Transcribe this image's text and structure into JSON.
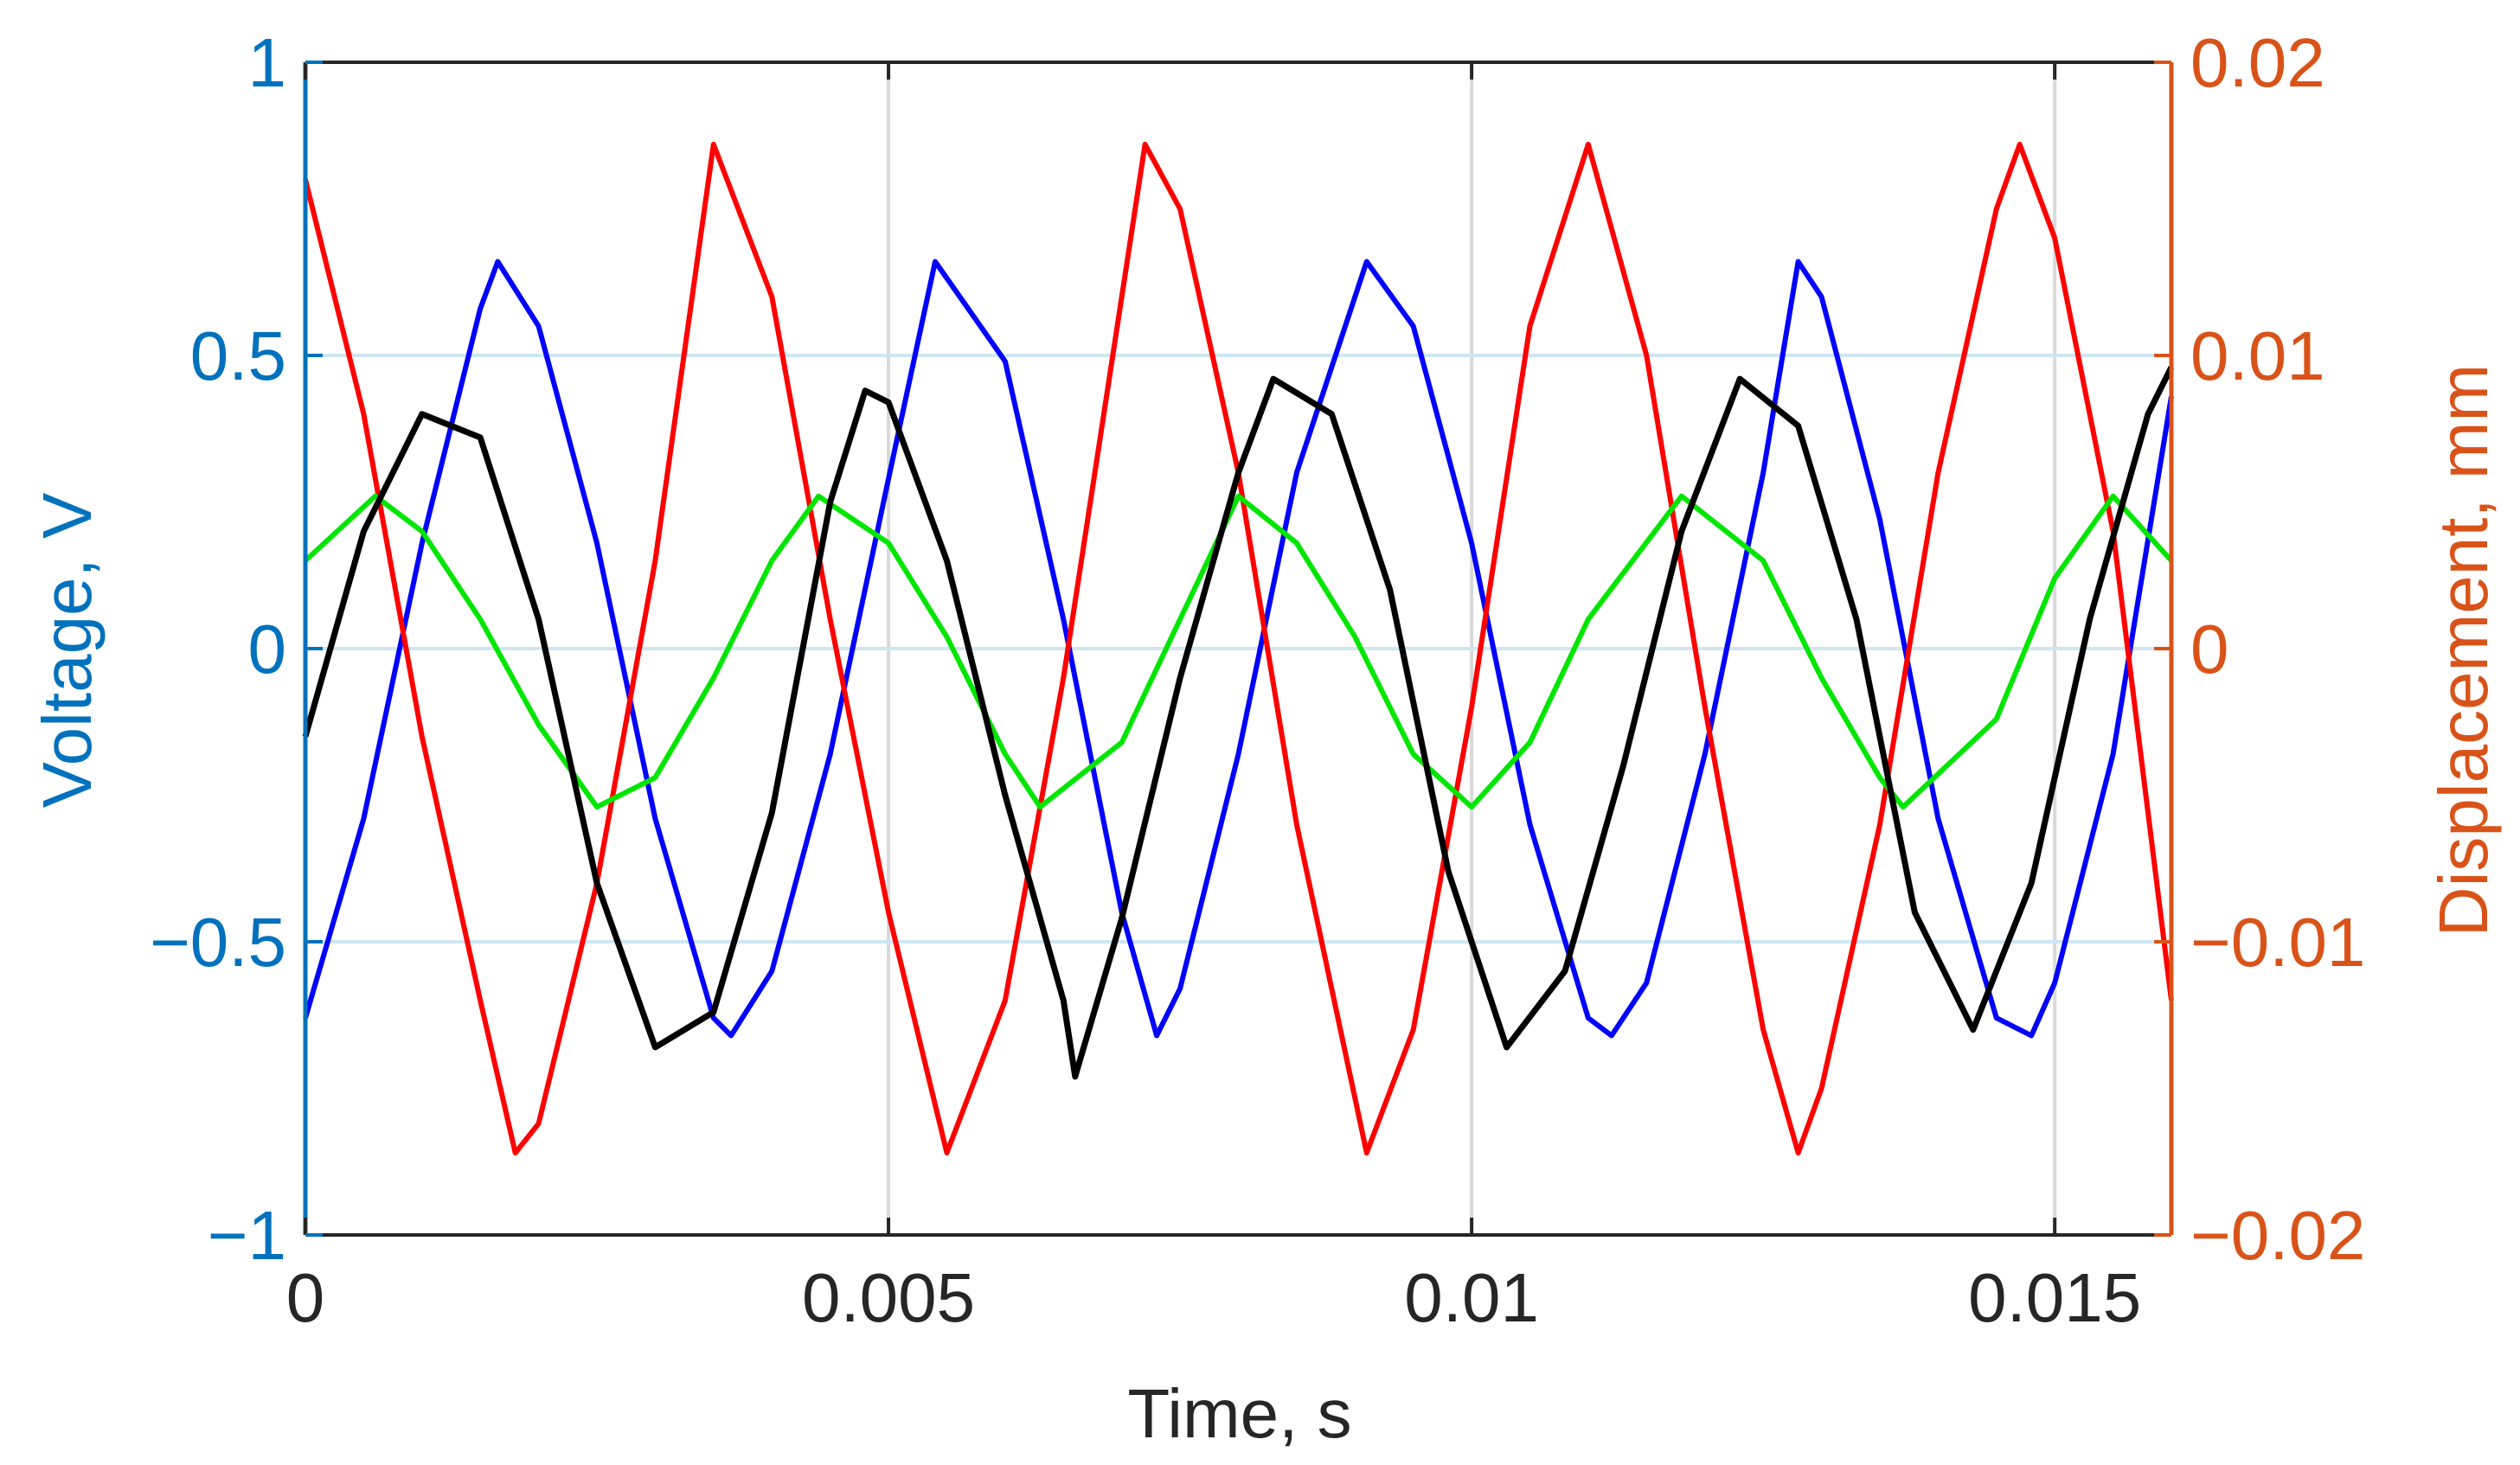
{
  "chart_data": {
    "type": "line",
    "title": "",
    "xlabel": "Time, s",
    "ylabel_left": "Voltage, V",
    "ylabel_right": "Displacement,  mm",
    "xlim": [
      0,
      0.016
    ],
    "ylim_left": [
      -1,
      1
    ],
    "ylim_right": [
      -0.02,
      0.02
    ],
    "grid": true,
    "x_ticks": [
      0,
      0.005,
      0.01,
      0.015
    ],
    "x_tick_labels": [
      "0",
      "0.005",
      "0.01",
      "0.015"
    ],
    "y_left_ticks": [
      -1,
      -0.5,
      0,
      0.5,
      1
    ],
    "y_left_tick_labels": [
      "−1",
      "−0.5",
      "0",
      "0.5",
      "1"
    ],
    "y_right_ticks": [
      -0.02,
      -0.01,
      0,
      0.01,
      0.02
    ],
    "y_right_tick_labels": [
      "−0.02",
      "−0.01",
      "0",
      "0.01",
      "0.02"
    ],
    "colors": {
      "left_axis": "#0072BD",
      "right_axis": "#D95319",
      "grid_left": "#CFE6F5",
      "grid_x": "#D9D9D9",
      "box": "#262626"
    },
    "series": [
      {
        "axis": "left",
        "color": "#0000FF",
        "points": [
          [
            0,
            -0.63
          ],
          [
            0.0005,
            -0.29
          ],
          [
            0.001,
            0.18
          ],
          [
            0.0015,
            0.58
          ],
          [
            0.00165,
            0.66
          ],
          [
            0.002,
            0.55
          ],
          [
            0.0025,
            0.18
          ],
          [
            0.003,
            -0.29
          ],
          [
            0.0035,
            -0.63
          ],
          [
            0.00365,
            -0.66
          ],
          [
            0.004,
            -0.55
          ],
          [
            0.0045,
            -0.18
          ],
          [
            0.005,
            0.29
          ],
          [
            0.0054,
            0.66
          ],
          [
            0.006,
            0.49
          ],
          [
            0.0065,
            0.05
          ],
          [
            0.007,
            -0.45
          ],
          [
            0.0073,
            -0.66
          ],
          [
            0.0075,
            -0.58
          ],
          [
            0.008,
            -0.18
          ],
          [
            0.0085,
            0.3
          ],
          [
            0.0091,
            0.66
          ],
          [
            0.0095,
            0.55
          ],
          [
            0.01,
            0.18
          ],
          [
            0.0105,
            -0.3
          ],
          [
            0.011,
            -0.63
          ],
          [
            0.0112,
            -0.66
          ],
          [
            0.0115,
            -0.57
          ],
          [
            0.012,
            -0.18
          ],
          [
            0.0125,
            0.3
          ],
          [
            0.0128,
            0.66
          ],
          [
            0.013,
            0.6
          ],
          [
            0.0135,
            0.22
          ],
          [
            0.014,
            -0.29
          ],
          [
            0.0145,
            -0.63
          ],
          [
            0.0148,
            -0.66
          ],
          [
            0.015,
            -0.57
          ],
          [
            0.0155,
            -0.18
          ],
          [
            0.016,
            0.43
          ]
        ]
      },
      {
        "axis": "right",
        "color": "#FF0000",
        "points": [
          [
            0,
            0.016
          ],
          [
            0.0005,
            0.008
          ],
          [
            0.001,
            -0.003
          ],
          [
            0.0015,
            -0.012
          ],
          [
            0.0018,
            -0.0172
          ],
          [
            0.002,
            -0.0162
          ],
          [
            0.0025,
            -0.008
          ],
          [
            0.003,
            0.003
          ],
          [
            0.0035,
            0.0172
          ],
          [
            0.004,
            0.012
          ],
          [
            0.0045,
            0.001
          ],
          [
            0.005,
            -0.009
          ],
          [
            0.0055,
            -0.0172
          ],
          [
            0.006,
            -0.012
          ],
          [
            0.0065,
            -0.001
          ],
          [
            0.007,
            0.012
          ],
          [
            0.0072,
            0.0172
          ],
          [
            0.0075,
            0.015
          ],
          [
            0.008,
            0.006
          ],
          [
            0.0085,
            -0.006
          ],
          [
            0.0091,
            -0.0172
          ],
          [
            0.0095,
            -0.013
          ],
          [
            0.01,
            -0.002
          ],
          [
            0.0105,
            0.011
          ],
          [
            0.011,
            0.0172
          ],
          [
            0.0115,
            0.01
          ],
          [
            0.012,
            -0.002
          ],
          [
            0.0125,
            -0.013
          ],
          [
            0.0128,
            -0.0172
          ],
          [
            0.013,
            -0.015
          ],
          [
            0.0135,
            -0.006
          ],
          [
            0.014,
            0.006
          ],
          [
            0.0145,
            0.015
          ],
          [
            0.0147,
            0.0172
          ],
          [
            0.015,
            0.014
          ],
          [
            0.0155,
            0.004
          ],
          [
            0.016,
            -0.012
          ]
        ]
      },
      {
        "axis": "left",
        "color": "#00E600",
        "points": [
          [
            0,
            0.15
          ],
          [
            0.0006,
            0.26
          ],
          [
            0.001,
            0.2
          ],
          [
            0.0015,
            0.05
          ],
          [
            0.002,
            -0.13
          ],
          [
            0.0025,
            -0.27
          ],
          [
            0.003,
            -0.22
          ],
          [
            0.0035,
            -0.05
          ],
          [
            0.004,
            0.15
          ],
          [
            0.0044,
            0.26
          ],
          [
            0.005,
            0.18
          ],
          [
            0.0055,
            0.02
          ],
          [
            0.006,
            -0.18
          ],
          [
            0.0063,
            -0.27
          ],
          [
            0.007,
            -0.16
          ],
          [
            0.0075,
            0.05
          ],
          [
            0.008,
            0.26
          ],
          [
            0.0085,
            0.18
          ],
          [
            0.009,
            0.02
          ],
          [
            0.0095,
            -0.18
          ],
          [
            0.01,
            -0.27
          ],
          [
            0.0105,
            -0.16
          ],
          [
            0.011,
            0.05
          ],
          [
            0.0118,
            0.26
          ],
          [
            0.0125,
            0.15
          ],
          [
            0.013,
            -0.05
          ],
          [
            0.0135,
            -0.22
          ],
          [
            0.0137,
            -0.27
          ],
          [
            0.0145,
            -0.12
          ],
          [
            0.015,
            0.12
          ],
          [
            0.0155,
            0.26
          ],
          [
            0.016,
            0.15
          ]
        ]
      },
      {
        "axis": "left",
        "color": "#000000",
        "points": [
          [
            0,
            -0.15
          ],
          [
            0.0005,
            0.2
          ],
          [
            0.001,
            0.4
          ],
          [
            0.0015,
            0.36
          ],
          [
            0.002,
            0.05
          ],
          [
            0.0025,
            -0.4
          ],
          [
            0.003,
            -0.68
          ],
          [
            0.0035,
            -0.62
          ],
          [
            0.004,
            -0.28
          ],
          [
            0.0045,
            0.25
          ],
          [
            0.0048,
            0.44
          ],
          [
            0.005,
            0.42
          ],
          [
            0.0055,
            0.15
          ],
          [
            0.006,
            -0.25
          ],
          [
            0.0065,
            -0.6
          ],
          [
            0.0066,
            -0.73
          ],
          [
            0.007,
            -0.46
          ],
          [
            0.0075,
            -0.05
          ],
          [
            0.008,
            0.3
          ],
          [
            0.0083,
            0.46
          ],
          [
            0.0088,
            0.4
          ],
          [
            0.0093,
            0.1
          ],
          [
            0.0098,
            -0.38
          ],
          [
            0.0103,
            -0.68
          ],
          [
            0.0108,
            -0.55
          ],
          [
            0.0113,
            -0.2
          ],
          [
            0.0118,
            0.2
          ],
          [
            0.0123,
            0.46
          ],
          [
            0.0128,
            0.38
          ],
          [
            0.0133,
            0.05
          ],
          [
            0.0138,
            -0.45
          ],
          [
            0.0143,
            -0.65
          ],
          [
            0.0148,
            -0.4
          ],
          [
            0.0153,
            0.05
          ],
          [
            0.0158,
            0.4
          ],
          [
            0.016,
            0.48
          ]
        ]
      }
    ]
  }
}
